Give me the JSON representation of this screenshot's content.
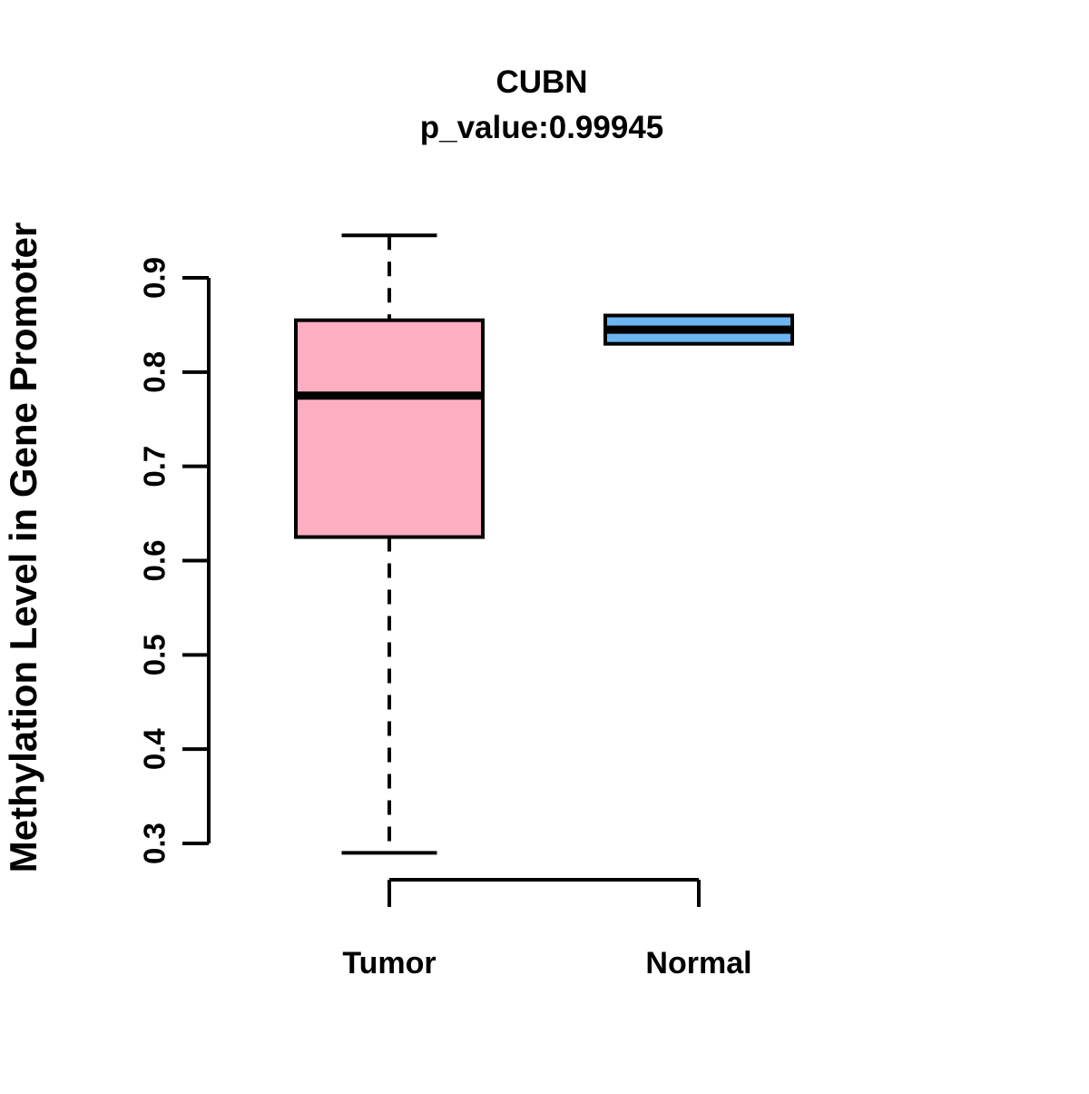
{
  "chart_data": {
    "type": "boxplot",
    "title": "CUBN",
    "subtitle": "p_value:0.99945",
    "ylabel": "Methylation Level in Gene Promoter",
    "xlabel": "",
    "categories": [
      "Tumor",
      "Normal"
    ],
    "y_tick_labels": [
      "0.9",
      "0.8",
      "0.7",
      "0.6",
      "0.5",
      "0.4",
      "0.3"
    ],
    "ylim": [
      0.29,
      0.95
    ],
    "grid": false,
    "legend": "none",
    "series": [
      {
        "name": "Tumor",
        "fill_color": "#FFAEC2",
        "min": 0.29,
        "q1": 0.625,
        "median": 0.775,
        "q3": 0.855,
        "max": 0.945
      },
      {
        "name": "Normal",
        "fill_color": "#6CB5F2",
        "min": 0.83,
        "q1": 0.83,
        "median": 0.845,
        "q3": 0.86,
        "max": 0.86
      }
    ],
    "colors": {
      "line": "#000000",
      "background": "#FFFFFF",
      "tumor_fill": "#FFAEC2",
      "normal_fill": "#6CB5F2"
    }
  }
}
